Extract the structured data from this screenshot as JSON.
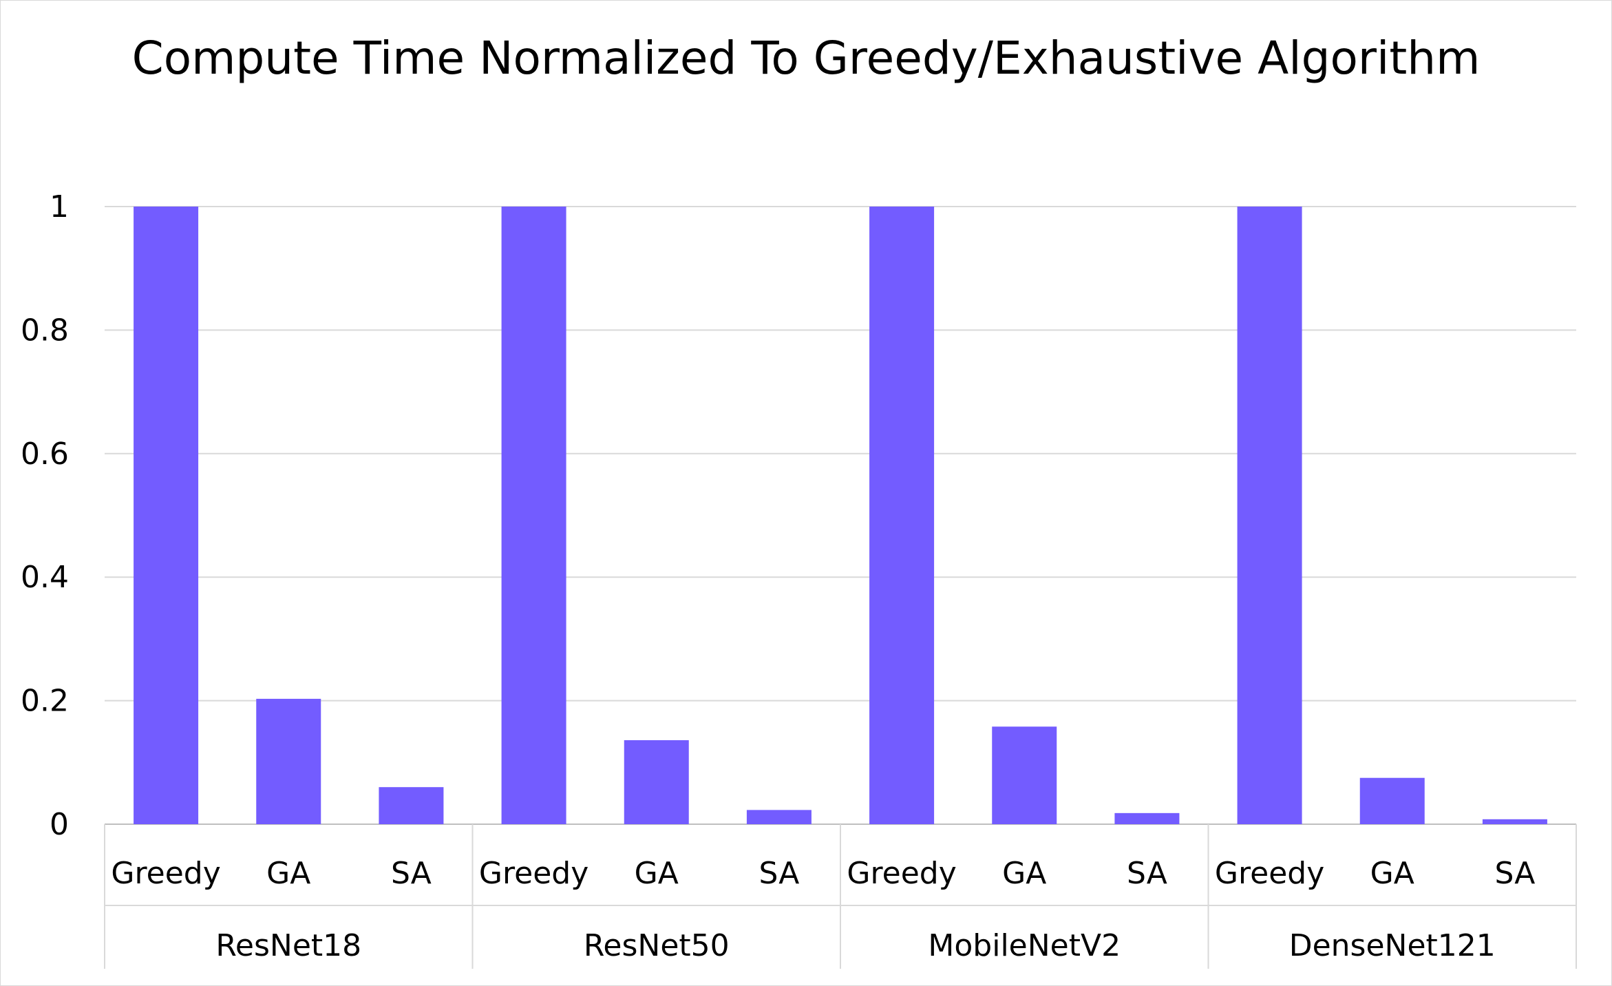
{
  "chart_data": {
    "type": "bar",
    "title": "Compute Time Normalized To Greedy/Exhaustive Algorithm",
    "xlabel": "",
    "ylabel": "",
    "ylim": [
      0,
      1
    ],
    "yticks": [
      "0",
      "0.2",
      "0.4",
      "0.6",
      "0.8",
      "1"
    ],
    "grid": true,
    "bar_color": "#735cff",
    "groups": [
      {
        "name": "ResNet18",
        "categories": [
          "Greedy",
          "GA",
          "SA"
        ],
        "values": [
          1.0,
          0.203,
          0.06
        ]
      },
      {
        "name": "ResNet50",
        "categories": [
          "Greedy",
          "GA",
          "SA"
        ],
        "values": [
          1.0,
          0.136,
          0.023
        ]
      },
      {
        "name": "MobileNetV2",
        "categories": [
          "Greedy",
          "GA",
          "SA"
        ],
        "values": [
          1.0,
          0.158,
          0.018
        ]
      },
      {
        "name": "DenseNet121",
        "categories": [
          "Greedy",
          "GA",
          "SA"
        ],
        "values": [
          1.0,
          0.075,
          0.008
        ]
      }
    ]
  }
}
